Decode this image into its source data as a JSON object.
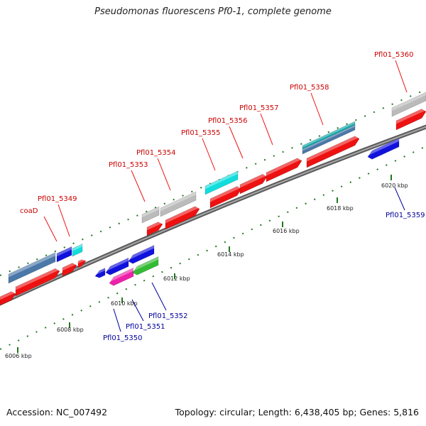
{
  "title": "Pseudomonas fluorescens Pf0-1, complete genome",
  "footer": {
    "accession": "Accession: NC_007492",
    "summary": "Topology: circular; Length: 6,438,405 bp; Genes: 5,816"
  },
  "ruler": {
    "unit": "kbp",
    "ticks": [
      {
        "kbp": 6006,
        "label": "6006 kbp"
      },
      {
        "kbp": 6008,
        "label": "6008 kbp"
      },
      {
        "kbp": 6010,
        "label": "6010 kbp"
      },
      {
        "kbp": 6012,
        "label": "6012 kbp"
      },
      {
        "kbp": 6014,
        "label": "6014 kbp"
      },
      {
        "kbp": 6016,
        "label": "6016 kbp"
      },
      {
        "kbp": 6018,
        "label": "6018 kbp"
      },
      {
        "kbp": 6020,
        "label": "6020 kbp"
      }
    ]
  },
  "colors": {
    "backbone": "#7a7a7a",
    "tick": "#227722",
    "red": "#ee1111",
    "blue": "#1111dd",
    "steel": "#4a78a8",
    "cyan": "#11dddd",
    "gray": "#bbbbbb",
    "magenta": "#ee22aa",
    "green": "#33bb33",
    "teal": "#11aaaa"
  },
  "forward_labels": [
    {
      "id": "coaD",
      "text": "coaD"
    },
    {
      "id": "5349",
      "text": "Pfl01_5349"
    },
    {
      "id": "5353",
      "text": "Pfl01_5353"
    },
    {
      "id": "5354",
      "text": "Pfl01_5354"
    },
    {
      "id": "5355",
      "text": "Pfl01_5355"
    },
    {
      "id": "5356",
      "text": "Pfl01_5356"
    },
    {
      "id": "5357",
      "text": "Pfl01_5357"
    },
    {
      "id": "5358",
      "text": "Pfl01_5358"
    },
    {
      "id": "5360",
      "text": "Pfl01_5360"
    }
  ],
  "reverse_labels": [
    {
      "id": "5350",
      "text": "Pfl01_5350"
    },
    {
      "id": "5351",
      "text": "Pfl01_5351"
    },
    {
      "id": "5352",
      "text": "Pfl01_5352"
    },
    {
      "id": "5359",
      "text": "Pfl01_5359"
    }
  ]
}
